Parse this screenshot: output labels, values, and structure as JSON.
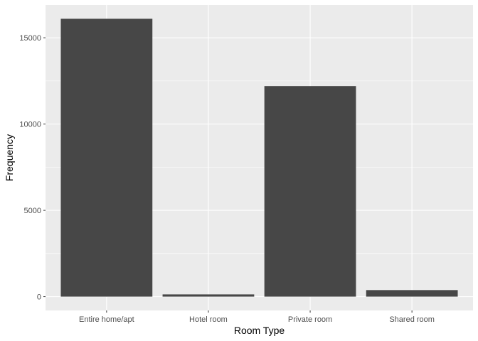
{
  "chart_data": {
    "type": "bar",
    "categories": [
      "Entire home/apt",
      "Hotel room",
      "Private room",
      "Shared room"
    ],
    "values": [
      16100,
      130,
      12200,
      380
    ],
    "xlabel": "Room Type",
    "ylabel": "Frequency",
    "yticks": [
      0,
      5000,
      10000,
      15000
    ],
    "ylim": [
      -800,
      16900
    ],
    "grid": true,
    "bar_color": "#474747",
    "panel_color": "#ebebeb",
    "grid_color": "#ffffff"
  }
}
